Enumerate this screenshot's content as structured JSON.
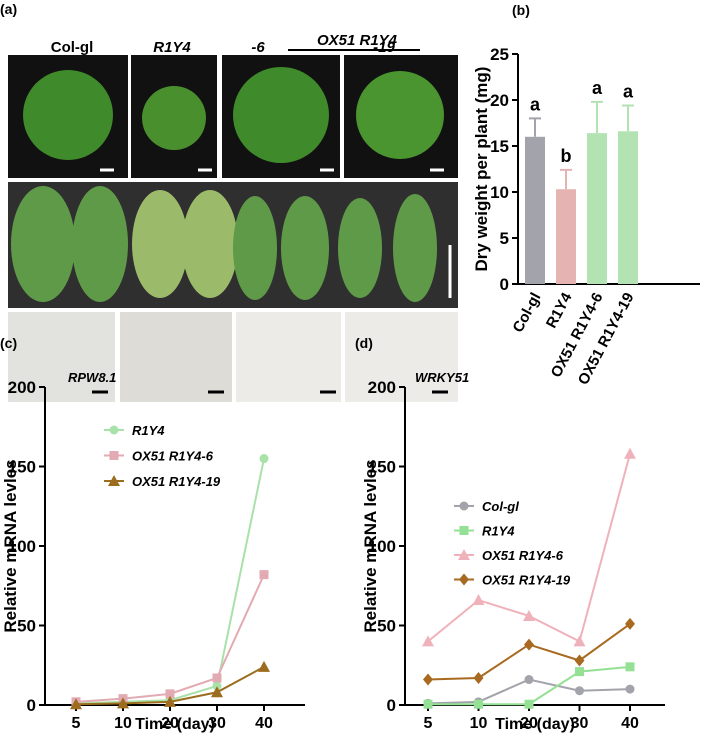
{
  "figure_a": {
    "panel_label": "(a)",
    "group_label": "OX51 R1Y4",
    "columns": [
      "Col-gl",
      "R1Y4",
      "-6",
      "-19"
    ]
  },
  "chart_data": [
    {
      "type": "bar",
      "panel_label": "(b)",
      "ylabel": "Dry weight per plant (mg)",
      "categories": [
        "Col-gl",
        "R1Y4",
        "OX51 R1Y4-6",
        "OX51 R1Y4-19"
      ],
      "values": [
        16,
        10.3,
        16.4,
        16.6
      ],
      "errors": [
        2,
        2.1,
        3.4,
        2.8
      ],
      "colors": [
        "#a3a3ab",
        "#e6b3b3",
        "#b3e3b3",
        "#b3e3b3"
      ],
      "value_labels": [
        "a",
        "b",
        "a",
        "a"
      ],
      "ylim": [
        0,
        25
      ],
      "yticks": [
        0,
        5,
        10,
        15,
        20,
        25
      ]
    },
    {
      "type": "line",
      "panel_label": "(c)",
      "annotation": "RPW8.1",
      "ylabel": "Relative mRNA levles",
      "xlabel": "Time (day)",
      "categories": [
        5,
        10,
        20,
        30,
        40
      ],
      "ylim": [
        0,
        200
      ],
      "yticks": [
        0,
        50,
        100,
        150,
        200
      ],
      "series": [
        {
          "name": "R1Y4",
          "color": "#a8e2a8",
          "marker": "circle",
          "values": [
            1,
            2,
            3,
            12,
            155
          ]
        },
        {
          "name": "OX51 R1Y4-6",
          "color": "#e2aab2",
          "marker": "square",
          "values": [
            2,
            4,
            7,
            17,
            82
          ]
        },
        {
          "name": "OX51 R1Y4-19",
          "color": "#9c6d1e",
          "marker": "triangle",
          "values": [
            0.5,
            1,
            2,
            8,
            24
          ]
        }
      ]
    },
    {
      "type": "line",
      "panel_label": "(d)",
      "annotation": "WRKY51",
      "ylabel": "Relative mRNA levles",
      "xlabel": "Time (day)",
      "categories": [
        5,
        10,
        20,
        30,
        40
      ],
      "ylim": [
        0,
        200
      ],
      "yticks": [
        0,
        50,
        100,
        150,
        200
      ],
      "series": [
        {
          "name": "Col-gl",
          "color": "#a3a3ab",
          "marker": "circle",
          "values": [
            1,
            2,
            16,
            9,
            10
          ]
        },
        {
          "name": "R1Y4",
          "color": "#94e094",
          "marker": "square",
          "values": [
            0.5,
            0.5,
            0.5,
            21,
            24
          ]
        },
        {
          "name": "OX51 R1Y4-6",
          "color": "#f0b2ba",
          "marker": "triangle",
          "values": [
            40,
            66,
            56,
            40,
            158
          ]
        },
        {
          "name": "OX51 R1Y4-19",
          "color": "#a86a20",
          "marker": "diamond",
          "values": [
            16,
            17,
            38,
            28,
            51
          ]
        }
      ]
    }
  ]
}
